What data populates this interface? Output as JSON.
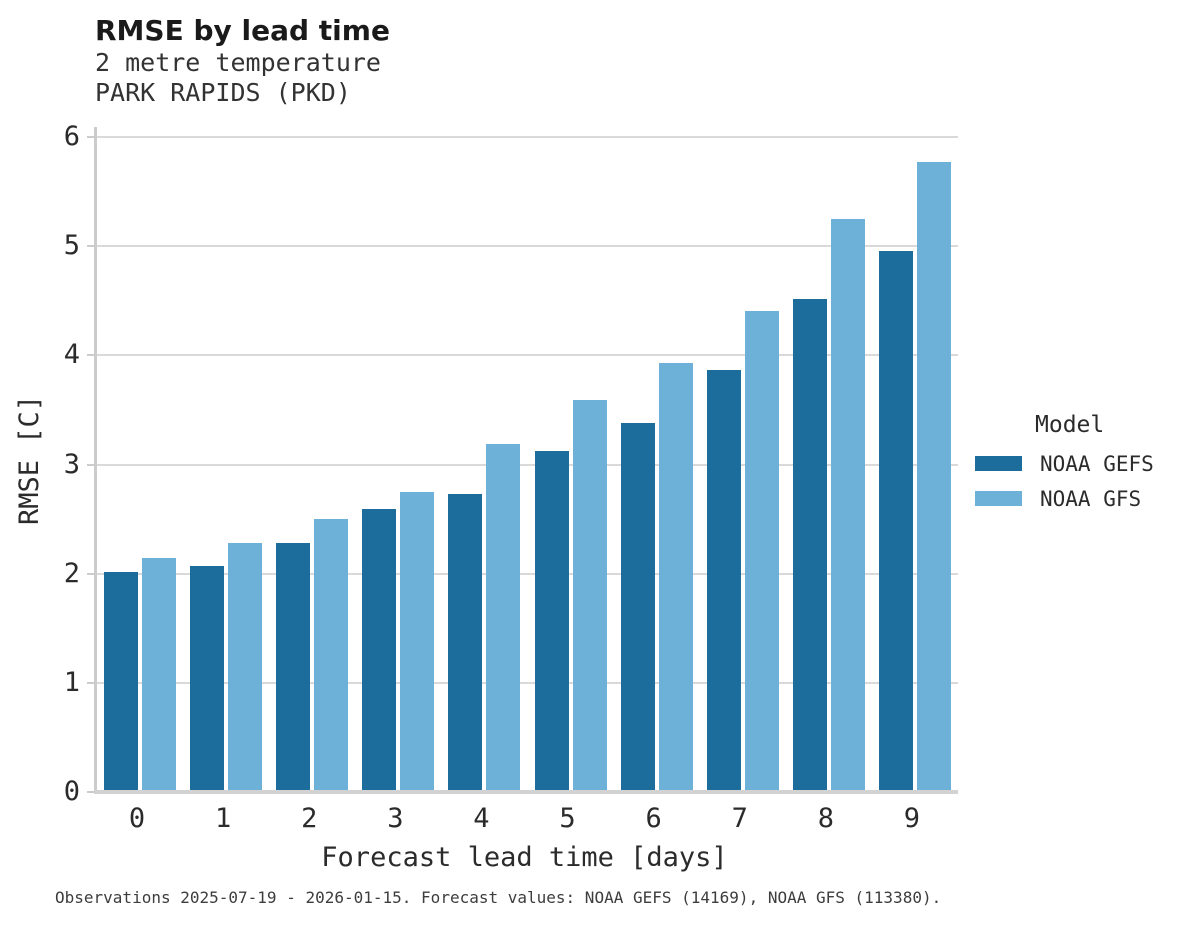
{
  "header": {
    "title": "RMSE by lead time",
    "subtitle_line1": "2 metre temperature",
    "subtitle_line2": "PARK RAPIDS (PKD)"
  },
  "chart_data": {
    "type": "bar",
    "title": "RMSE by lead time",
    "subtitle": [
      "2 metre temperature",
      "PARK RAPIDS (PKD)"
    ],
    "categories": [
      "0",
      "1",
      "2",
      "3",
      "4",
      "5",
      "6",
      "7",
      "8",
      "9"
    ],
    "series": [
      {
        "name": "NOAA GEFS",
        "color": "#1c6d9c",
        "values": [
          2.01,
          2.06,
          2.27,
          2.58,
          2.72,
          3.11,
          3.37,
          3.86,
          4.51,
          4.95
        ]
      },
      {
        "name": "NOAA GFS",
        "color": "#6db1d8",
        "values": [
          2.13,
          2.27,
          2.49,
          2.74,
          3.18,
          3.58,
          3.92,
          4.4,
          5.24,
          5.76
        ]
      }
    ],
    "xlabel": "Forecast lead time [days]",
    "ylabel": "RMSE [C]",
    "ylim": [
      0,
      6
    ],
    "yticks": [
      0,
      1,
      2,
      3,
      4,
      5,
      6
    ],
    "grid": "horizontal-only",
    "legend_position": "right"
  },
  "legend": {
    "title": "Model"
  },
  "colors": {
    "grid": "#d9d9d9",
    "spine": "#cccccc",
    "title_text": "#1a1a1a",
    "body_text": "#2b2b2b"
  },
  "caption": "Observations 2025-07-19 - 2026-01-15. Forecast values: NOAA GEFS (14169), NOAA GFS (113380)."
}
